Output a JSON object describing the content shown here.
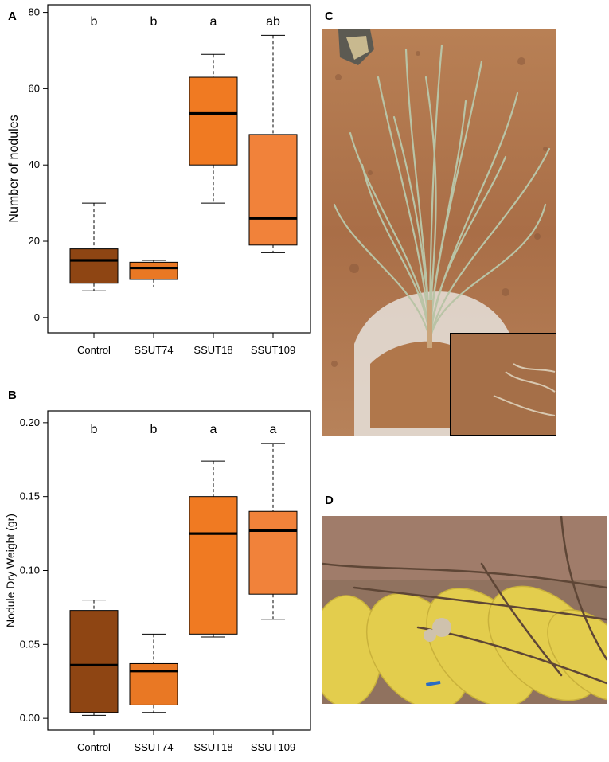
{
  "panels": {
    "a": "A",
    "b": "B",
    "c": "C",
    "d": "D"
  },
  "chart_data": [
    {
      "type": "boxplot",
      "panel": "A",
      "ylabel": "Number of nodules",
      "ylim": [
        -4,
        82
      ],
      "yticks": [
        0,
        20,
        40,
        60,
        80
      ],
      "categories": [
        "Control",
        "SSUT74",
        "SSUT18",
        "SSUT109"
      ],
      "boxes": [
        {
          "min": 7,
          "q1": 9,
          "median": 15,
          "q3": 18,
          "max": 30,
          "letter": "b",
          "color": "#8e4513"
        },
        {
          "min": 8,
          "q1": 10,
          "median": 13,
          "q3": 14.5,
          "max": 15,
          "letter": "b",
          "color": "#e97824"
        },
        {
          "min": 30,
          "q1": 40,
          "median": 53.5,
          "q3": 63,
          "max": 69,
          "letter": "a",
          "color": "#f07a22"
        },
        {
          "min": 17,
          "q1": 19,
          "median": 26,
          "q3": 48,
          "max": 74,
          "letter": "ab",
          "color": "#f1823a"
        }
      ]
    },
    {
      "type": "boxplot",
      "panel": "B",
      "ylabel": "Nodule Dry Weight (gr)",
      "ylim": [
        -0.008,
        0.208
      ],
      "yticks": [
        "0.00",
        "0.05",
        "0.10",
        "0.15",
        "0.20"
      ],
      "categories": [
        "Control",
        "SSUT74",
        "SSUT18",
        "SSUT109"
      ],
      "boxes": [
        {
          "min": 0.002,
          "q1": 0.004,
          "median": 0.036,
          "q3": 0.073,
          "max": 0.08,
          "letter": "b",
          "color": "#8e4513"
        },
        {
          "min": 0.004,
          "q1": 0.009,
          "median": 0.032,
          "q3": 0.037,
          "max": 0.057,
          "letter": "b",
          "color": "#e97824"
        },
        {
          "min": 0.055,
          "q1": 0.057,
          "median": 0.125,
          "q3": 0.15,
          "max": 0.174,
          "letter": "a",
          "color": "#f07a22"
        },
        {
          "min": 0.067,
          "q1": 0.084,
          "median": 0.127,
          "q3": 0.14,
          "max": 0.186,
          "letter": "a",
          "color": "#f1823a"
        }
      ]
    }
  ],
  "photos": {
    "c_desc_icon": "plant-photo",
    "d_desc_icon": "root-nodules-photo"
  }
}
